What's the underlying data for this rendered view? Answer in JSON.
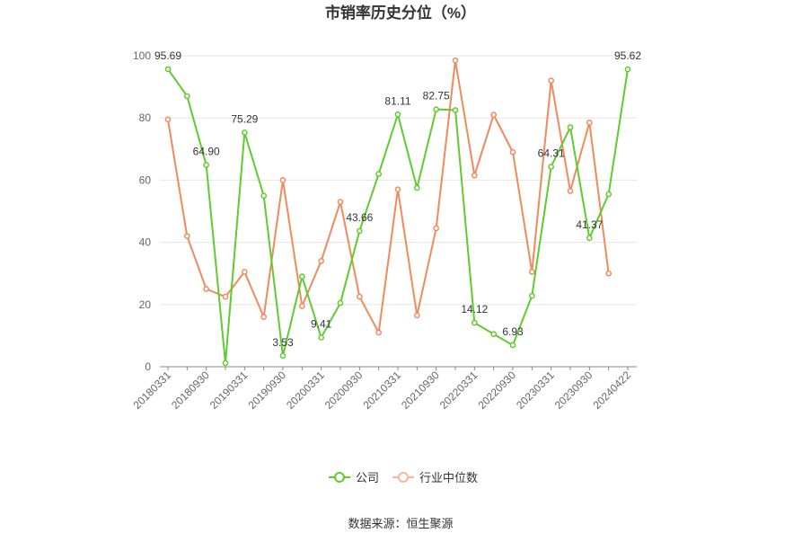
{
  "chart_data": {
    "type": "line",
    "title": "市销率历史分位（%）",
    "source": "数据来源：恒生聚源",
    "ylim": [
      0,
      100
    ],
    "yticks": [
      0,
      20,
      40,
      60,
      80,
      100
    ],
    "ytick_labels": [
      "0",
      "20",
      "40",
      "60",
      "80",
      "100"
    ],
    "x_tick_labels": [
      "20180331",
      "20180930",
      "20190331",
      "20190930",
      "20200331",
      "20200930",
      "20210331",
      "20210930",
      "20220331",
      "20220930",
      "20230331",
      "20230930",
      "20240422"
    ],
    "x_tick_positions": [
      0,
      2,
      4,
      6,
      8,
      10,
      12,
      14,
      16,
      18,
      20,
      22,
      24
    ],
    "grid": true,
    "legend_position": "bottom",
    "series": [
      {
        "name": "公司",
        "color": "#5fcb2f",
        "values": [
          95.69,
          87.0,
          64.9,
          1.2,
          75.29,
          55.0,
          3.53,
          29.0,
          9.41,
          20.5,
          43.66,
          62.0,
          81.11,
          57.5,
          82.75,
          82.5,
          14.12,
          10.5,
          6.93,
          22.8,
          64.31,
          77.0,
          41.37,
          55.5,
          95.62
        ],
        "data_labels": {
          "0": "95.69",
          "2": "64.90",
          "4": "75.29",
          "6": "3.53",
          "8": "9.41",
          "10": "43.66",
          "12": "81.11",
          "14": "82.75",
          "16": "14.12",
          "18": "6.93",
          "20": "64.31",
          "22": "41.37",
          "24": "95.62"
        }
      },
      {
        "name": "行业中位数",
        "color": "#f08a5d",
        "values": [
          79.5,
          42.0,
          25.0,
          22.5,
          30.5,
          16.0,
          60.0,
          19.5,
          34.0,
          53.0,
          22.5,
          11.0,
          57.0,
          16.5,
          44.5,
          98.5,
          61.5,
          81.0,
          69.0,
          30.5,
          92.0,
          56.5,
          78.5,
          30.0
        ]
      }
    ]
  }
}
